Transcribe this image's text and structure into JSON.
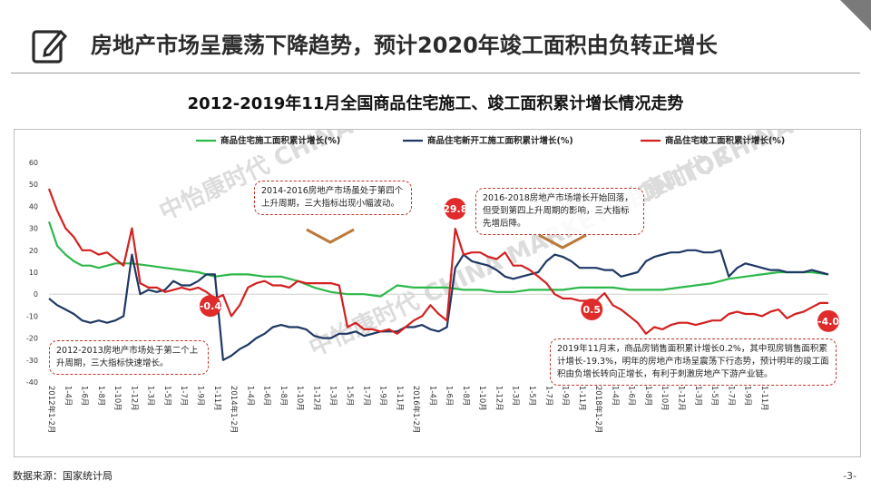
{
  "headline": "房地产市场呈震荡下降趋势，预计2020年竣工面积由负转正增长",
  "chart_data": {
    "type": "line",
    "title": "2012-2019年11月全国商品住宅施工、竣工面积累计增长情况走势",
    "ylim": [
      -40,
      60
    ],
    "yticks": [
      60,
      50,
      40,
      30,
      20,
      10,
      0,
      -10,
      -20,
      -30,
      -40
    ],
    "categories": [
      "2012年1-2月",
      "1-4月",
      "1-6月",
      "1-8月",
      "1-10月",
      "1-12月",
      "1-3月",
      "1-5月",
      "1-7月",
      "1-9月",
      "1-11月",
      "2014年1-2月",
      "1-4月",
      "1-6月",
      "1-8月",
      "1-10月",
      "1-12月",
      "1-3月",
      "1-5月",
      "1-7月",
      "1-9月",
      "1-11月",
      "2016年1-2月",
      "1-4月",
      "1-6月",
      "1-8月",
      "1-10月",
      "1-12月",
      "1-3月",
      "1-5月",
      "1-7月",
      "1-9月",
      "1-11月",
      "2018年1-2月",
      "1-4月",
      "1-6月",
      "1-8月",
      "1-10月",
      "1-12月",
      "1-3月",
      "1-5月",
      "1-7月",
      "1-9月",
      "1-11月"
    ],
    "legend": "top",
    "grid": false,
    "series": [
      {
        "name": "商品住宅施工面积累计增长(%)",
        "color": "#2db84a",
        "x": [
          0,
          1,
          2,
          3,
          4,
          5,
          6,
          8,
          10,
          12,
          14,
          16,
          18,
          20,
          22,
          24,
          26,
          28,
          30,
          32,
          34,
          36,
          38,
          40,
          42,
          44,
          46,
          48,
          50,
          52,
          54,
          56,
          58,
          60,
          62,
          64,
          66,
          68,
          70,
          72,
          74,
          76,
          78,
          80,
          82,
          84,
          86,
          88,
          90,
          92,
          94
        ],
        "values": [
          33,
          22,
          18,
          15,
          13,
          13,
          12,
          14,
          14,
          13,
          12,
          11,
          10,
          8,
          9,
          9,
          8,
          8,
          6,
          3,
          1,
          0,
          0,
          -1,
          4,
          3,
          3,
          3,
          2,
          2,
          1,
          1,
          2,
          2,
          2,
          3,
          3,
          3,
          2,
          2,
          2,
          3,
          4,
          5,
          7,
          8,
          9,
          10,
          10,
          10,
          9
        ]
      },
      {
        "name": "商品住宅新开工施工面积累计增长(%)",
        "color": "#1f3864",
        "x": [
          0,
          1,
          2,
          3,
          4,
          5,
          6,
          7,
          8,
          9,
          10,
          11,
          12,
          13,
          14,
          15,
          16,
          17,
          18,
          19,
          20,
          21,
          22,
          23,
          24,
          25,
          26,
          27,
          28,
          29,
          30,
          31,
          32,
          33,
          34,
          35,
          36,
          37,
          38,
          39,
          40,
          41,
          42,
          43,
          44,
          45,
          46,
          47,
          48,
          49,
          50,
          51,
          52,
          53,
          54,
          55,
          56,
          57,
          58,
          59,
          60,
          61,
          62,
          63,
          64,
          65,
          66,
          67,
          68,
          69,
          70,
          71,
          72,
          73,
          74,
          75,
          76,
          77,
          78,
          79,
          80,
          81,
          82,
          83,
          84,
          85,
          86,
          87,
          88,
          89,
          90,
          91,
          92,
          93,
          94
        ],
        "values": [
          -2,
          -5,
          -7,
          -9,
          -12,
          -13,
          -12,
          -13,
          -12,
          -10,
          18,
          0,
          2,
          1,
          2,
          6,
          4,
          4,
          6,
          9,
          9,
          -30,
          -28,
          -25,
          -23,
          -20,
          -18,
          -15,
          -14,
          -15,
          -15,
          -16,
          -19,
          -20,
          -20,
          -18,
          -18,
          -17,
          -19,
          -18,
          -17,
          -17,
          -17,
          -15,
          -15,
          -14,
          -16,
          -17,
          -15,
          12,
          18,
          15,
          14,
          13,
          11,
          8,
          7,
          8,
          9,
          10,
          15,
          18,
          17,
          15,
          12,
          12,
          12,
          11,
          11,
          8,
          9,
          10,
          15,
          17,
          18,
          19,
          19,
          20,
          20,
          19,
          19,
          20,
          8,
          12,
          14,
          13,
          12,
          11,
          11,
          10,
          10,
          10,
          11,
          10,
          9
        ]
      },
      {
        "name": "商品住宅竣工面积累计增长(%)",
        "color": "#d42020",
        "x": [
          0,
          1,
          2,
          3,
          4,
          5,
          6,
          7,
          8,
          9,
          10,
          11,
          12,
          13,
          14,
          15,
          16,
          17,
          18,
          19,
          20,
          21,
          22,
          23,
          24,
          25,
          26,
          27,
          28,
          29,
          30,
          31,
          32,
          33,
          34,
          35,
          36,
          37,
          38,
          39,
          40,
          41,
          42,
          43,
          44,
          45,
          46,
          47,
          48,
          49,
          50,
          51,
          52,
          53,
          54,
          55,
          56,
          57,
          58,
          59,
          60,
          61,
          62,
          63,
          64,
          65,
          66,
          67,
          68,
          69,
          70,
          71,
          72,
          73,
          74,
          75,
          76,
          77,
          78,
          79,
          80,
          81,
          82,
          83,
          84,
          85,
          86,
          87,
          88,
          89,
          90,
          91,
          92,
          93,
          94
        ],
        "values": [
          48,
          38,
          30,
          26,
          20,
          20,
          18,
          19,
          16,
          13,
          30,
          5,
          3,
          3,
          1,
          2,
          3,
          2,
          3,
          1,
          -2,
          -0.4,
          -10,
          -5,
          3,
          5,
          6,
          4,
          4,
          3,
          6,
          5,
          5,
          5,
          5,
          4,
          -15,
          -13,
          -16,
          -16,
          -17,
          -16,
          -18,
          -15,
          -12,
          -10,
          -5,
          -9,
          -12,
          29.8,
          18,
          19,
          19,
          17,
          16,
          19,
          13,
          13,
          11,
          8,
          5,
          0,
          -2,
          -2,
          -3,
          -3,
          -3,
          0.5,
          -5,
          -7,
          -10,
          -13,
          -18,
          -15,
          -16,
          -14,
          -13,
          -13,
          -14,
          -13,
          -12,
          -12,
          -9,
          -8,
          -9,
          -9,
          -10,
          -8,
          -7,
          -11,
          -9,
          -8,
          -6,
          -4,
          -4.0
        ]
      }
    ],
    "data_labels": [
      {
        "text": "-0.4",
        "x": 21,
        "y": -0.4
      },
      {
        "text": "29.8",
        "x": 49,
        "y": 29.8
      },
      {
        "text": "0.5",
        "x": 67,
        "y": 0.5
      },
      {
        "text": "-4.0",
        "x": 94,
        "y": -4.0
      }
    ]
  },
  "annotations": {
    "a1": "2014-2016房地产市场虽处于第四个上升周期，三大指标出现小幅波动。",
    "a2": "2016-2018房地产市场增长开始回落，但受到第四上升周期的影响，三大指标先增后降。",
    "a3": "2012-2013房地产市场处于第二个上升周期，三大指标快速增长。",
    "a4": "2019年11月末，商品房销售面积累计增长0.2%，其中现房销售面积累计增长-19.3%，明年的房地产市场呈震荡下行态势，预计明年的竣工面积由负增长转向正增长，有利于刺激房地产下游产业链。"
  },
  "watermark": "中怡康时代 CHINA MARKET MONITOR",
  "footer": {
    "source": "数据来源：国家统计局",
    "page": "-3-"
  },
  "colors": {
    "accent": "#d42020",
    "navy": "#1f3864",
    "green": "#2db84a"
  }
}
